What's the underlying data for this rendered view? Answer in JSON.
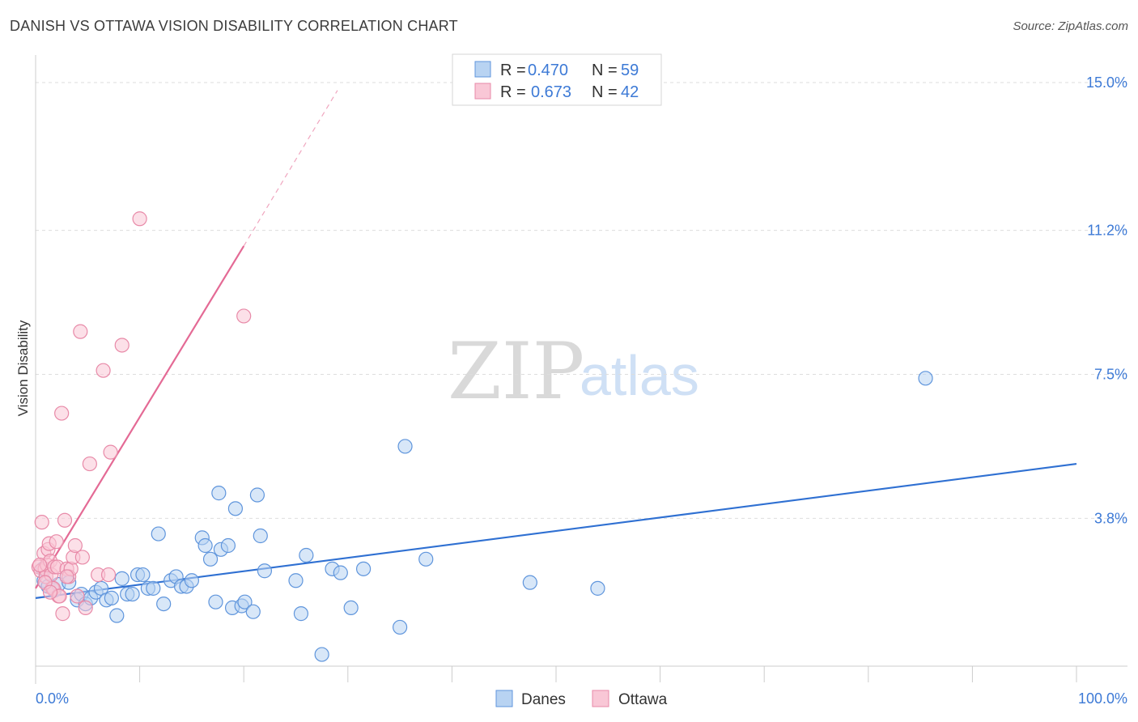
{
  "header": {
    "title": "DANISH VS OTTAWA VISION DISABILITY CORRELATION CHART",
    "source": "Source: ZipAtlas.com"
  },
  "watermark": {
    "zip": "ZIP",
    "atlas": "atlas"
  },
  "colors": {
    "danes_fill": "#b8d3f2",
    "danes_stroke": "#5f95dc",
    "danes_line": "#2f70d2",
    "ottawa_fill": "#f9c7d6",
    "ottawa_stroke": "#e88aa8",
    "ottawa_line": "#e46a95",
    "grid": "#dddddd",
    "axis_label": "#3d7ad6"
  },
  "legend": {
    "danes": {
      "r_label": "R =",
      "r_value": "0.470",
      "n_label": "N =",
      "n_value": "59"
    },
    "ottawa": {
      "r_label": "R =",
      "r_value": "0.673",
      "n_label": "N =",
      "n_value": "42"
    }
  },
  "chart_data": {
    "type": "scatter",
    "title": "DANISH VS OTTAWA VISION DISABILITY CORRELATION CHART",
    "xlabel": "",
    "ylabel": "Vision Disability",
    "xlim": [
      0,
      100
    ],
    "ylim": [
      0,
      15.5
    ],
    "x_tick_labels": {
      "min": "0.0%",
      "max": "100.0%"
    },
    "y_ticks": [
      {
        "value": 3.8,
        "label": "3.8%"
      },
      {
        "value": 7.5,
        "label": "7.5%"
      },
      {
        "value": 11.2,
        "label": "11.2%"
      },
      {
        "value": 15.0,
        "label": "15.0%"
      }
    ],
    "series": [
      {
        "name": "Danes",
        "trendline": {
          "x0": 0,
          "y0": 1.75,
          "x1": 100,
          "y1": 5.2,
          "dashed_to": null
        },
        "points": [
          [
            0.8,
            2.2
          ],
          [
            1.2,
            2.05
          ],
          [
            1.8,
            1.95
          ],
          [
            2.2,
            2.1
          ],
          [
            3.0,
            2.3
          ],
          [
            3.2,
            2.15
          ],
          [
            4.0,
            1.7
          ],
          [
            4.4,
            1.85
          ],
          [
            4.8,
            1.6
          ],
          [
            5.3,
            1.75
          ],
          [
            5.8,
            1.9
          ],
          [
            6.3,
            2.0
          ],
          [
            6.8,
            1.7
          ],
          [
            7.3,
            1.75
          ],
          [
            7.8,
            1.3
          ],
          [
            8.3,
            2.25
          ],
          [
            8.8,
            1.85
          ],
          [
            9.3,
            1.85
          ],
          [
            9.8,
            2.35
          ],
          [
            10.3,
            2.35
          ],
          [
            10.8,
            2.0
          ],
          [
            11.3,
            2.0
          ],
          [
            11.8,
            3.4
          ],
          [
            12.3,
            1.6
          ],
          [
            13.0,
            2.2
          ],
          [
            13.5,
            2.3
          ],
          [
            14.0,
            2.05
          ],
          [
            14.5,
            2.05
          ],
          [
            15.0,
            2.2
          ],
          [
            16.0,
            3.3
          ],
          [
            16.3,
            3.1
          ],
          [
            16.8,
            2.75
          ],
          [
            17.3,
            1.65
          ],
          [
            17.6,
            4.45
          ],
          [
            17.8,
            3.0
          ],
          [
            18.5,
            3.1
          ],
          [
            18.9,
            1.5
          ],
          [
            19.2,
            4.05
          ],
          [
            19.8,
            1.55
          ],
          [
            20.1,
            1.65
          ],
          [
            20.9,
            1.4
          ],
          [
            21.3,
            4.4
          ],
          [
            21.6,
            3.35
          ],
          [
            22.0,
            2.45
          ],
          [
            25.0,
            2.2
          ],
          [
            25.5,
            1.35
          ],
          [
            26.0,
            2.85
          ],
          [
            27.5,
            0.3
          ],
          [
            28.5,
            2.5
          ],
          [
            29.3,
            2.4
          ],
          [
            30.3,
            1.5
          ],
          [
            31.5,
            2.5
          ],
          [
            35.0,
            1.0
          ],
          [
            35.5,
            5.65
          ],
          [
            37.5,
            2.75
          ],
          [
            47.5,
            2.15
          ],
          [
            54.0,
            2.0
          ],
          [
            85.5,
            7.4
          ],
          [
            0.7,
            2.5
          ]
        ]
      },
      {
        "name": "Ottawa",
        "trendline": {
          "x0": 0,
          "y0": 2.0,
          "x1": 20,
          "y1": 10.8,
          "dashed_to": [
            29,
            14.8
          ]
        },
        "points": [
          [
            0.3,
            2.55
          ],
          [
            0.5,
            2.45
          ],
          [
            0.6,
            3.7
          ],
          [
            0.8,
            2.9
          ],
          [
            0.9,
            2.5
          ],
          [
            1.0,
            2.3
          ],
          [
            1.1,
            2.6
          ],
          [
            1.2,
            3.0
          ],
          [
            1.3,
            3.15
          ],
          [
            1.4,
            2.7
          ],
          [
            1.5,
            2.35
          ],
          [
            1.6,
            2.0
          ],
          [
            1.7,
            2.0
          ],
          [
            1.8,
            2.55
          ],
          [
            2.0,
            3.2
          ],
          [
            2.1,
            2.55
          ],
          [
            2.2,
            1.8
          ],
          [
            2.3,
            1.8
          ],
          [
            2.5,
            6.5
          ],
          [
            2.6,
            1.35
          ],
          [
            2.8,
            3.75
          ],
          [
            3.0,
            2.5
          ],
          [
            3.2,
            2.3
          ],
          [
            3.4,
            2.5
          ],
          [
            3.6,
            2.8
          ],
          [
            3.8,
            3.1
          ],
          [
            4.0,
            1.8
          ],
          [
            4.3,
            8.6
          ],
          [
            4.5,
            2.8
          ],
          [
            4.8,
            1.5
          ],
          [
            5.2,
            5.2
          ],
          [
            6.0,
            2.35
          ],
          [
            6.5,
            7.6
          ],
          [
            7.0,
            2.35
          ],
          [
            7.2,
            5.5
          ],
          [
            8.3,
            8.25
          ],
          [
            10.0,
            11.5
          ],
          [
            20.0,
            9.0
          ],
          [
            0.9,
            2.15
          ],
          [
            1.4,
            1.9
          ],
          [
            3.0,
            2.3
          ],
          [
            0.4,
            2.6
          ]
        ]
      }
    ]
  }
}
